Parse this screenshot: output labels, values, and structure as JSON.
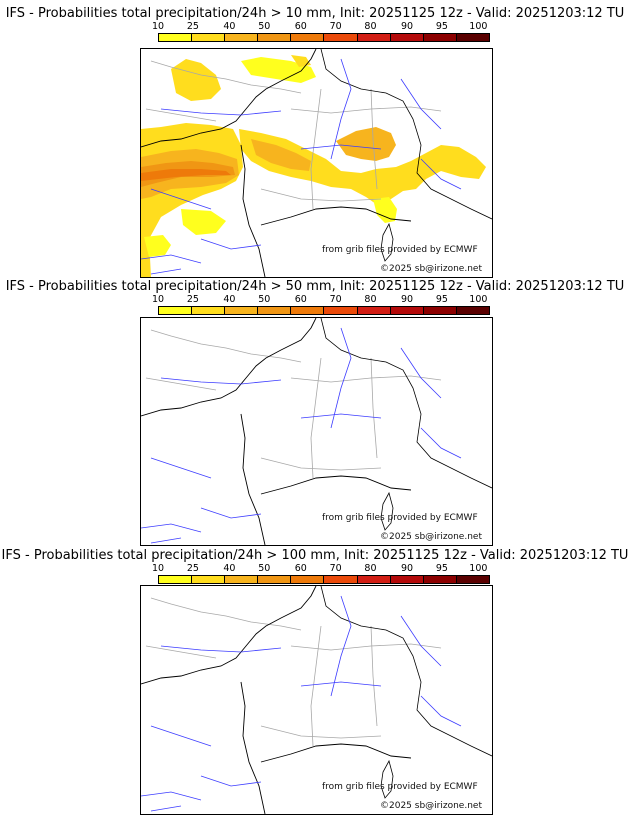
{
  "colors": {
    "scale": [
      "#ffff1e",
      "#ffdd1e",
      "#f7b41e",
      "#f09614",
      "#ee7a0a",
      "#eb4a0a",
      "#d21e14",
      "#b40a0a",
      "#8c0000",
      "#5a0000"
    ],
    "rivers": "#3c3cff",
    "borders": "#a8a8a8",
    "coast": "#000000"
  },
  "legend": {
    "ticks": [
      "10",
      "25",
      "40",
      "50",
      "60",
      "70",
      "80",
      "90",
      "95",
      "100"
    ]
  },
  "credits": {
    "source": "from grib files provided by ECMWF",
    "copyright": "©2025 sb@irizone.net"
  },
  "panels": [
    {
      "title": "IFS - Probabilities total precipitation/24h > 10 mm, Init: 20251125 12z - Valid: 20251203:12 TU",
      "threshold_mm": 10,
      "has_precipitation": true
    },
    {
      "title": "IFS - Probabilities total precipitation/24h > 50 mm, Init: 20251125 12z - Valid: 20251203:12 TU",
      "threshold_mm": 50,
      "has_precipitation": false
    },
    {
      "title": "IFS - Probabilities total precipitation/24h > 100 mm, Init: 20251125 12z - Valid: 20251203:12 TU",
      "threshold_mm": 100,
      "has_precipitation": false
    }
  ]
}
